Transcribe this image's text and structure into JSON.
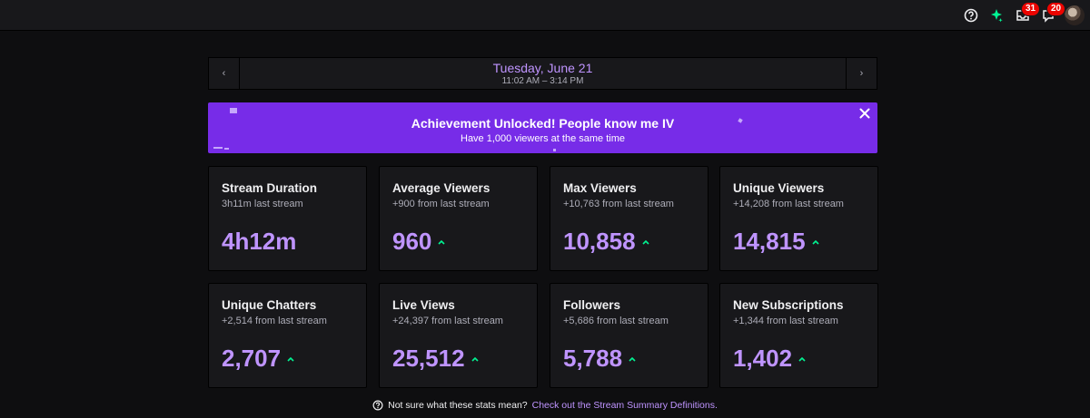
{
  "topbar": {
    "icons": [
      "help-icon",
      "prime-crown-icon",
      "inbox-icon",
      "notifications-icon",
      "avatar"
    ],
    "inbox_count": "31",
    "notifications_count": "20"
  },
  "date_nav": {
    "title": "Tuesday, June 21",
    "time_range": "11:02 AM – 3:14 PM",
    "prev_label": "‹",
    "next_label": "›"
  },
  "achievement": {
    "title": "Achievement Unlocked! People know me IV",
    "subtitle": "Have 1,000 viewers at the same time",
    "color": "#772ce8"
  },
  "stats": [
    {
      "title": "Stream Duration",
      "sub": "3h11m last stream",
      "value": "4h12m",
      "trend": "none"
    },
    {
      "title": "Average Viewers",
      "sub": "+900 from last stream",
      "value": "960",
      "trend": "up"
    },
    {
      "title": "Max Viewers",
      "sub": "+10,763 from last stream",
      "value": "10,858",
      "trend": "up"
    },
    {
      "title": "Unique Viewers",
      "sub": "+14,208 from last stream",
      "value": "14,815",
      "trend": "up"
    },
    {
      "title": "Unique Chatters",
      "sub": "+2,514 from last stream",
      "value": "2,707",
      "trend": "up"
    },
    {
      "title": "Live Views",
      "sub": "+24,397 from last stream",
      "value": "25,512",
      "trend": "up"
    },
    {
      "title": "Followers",
      "sub": "+5,686 from last stream",
      "value": "5,788",
      "trend": "up"
    },
    {
      "title": "New Subscriptions",
      "sub": "+1,344 from last stream",
      "value": "1,402",
      "trend": "up"
    }
  ],
  "footer": {
    "text": "Not sure what these stats mean?",
    "link": "Check out the Stream Summary Definitions."
  },
  "colors": {
    "accent": "#bf94ff",
    "positive": "#00f593",
    "badge": "#eb0400"
  }
}
